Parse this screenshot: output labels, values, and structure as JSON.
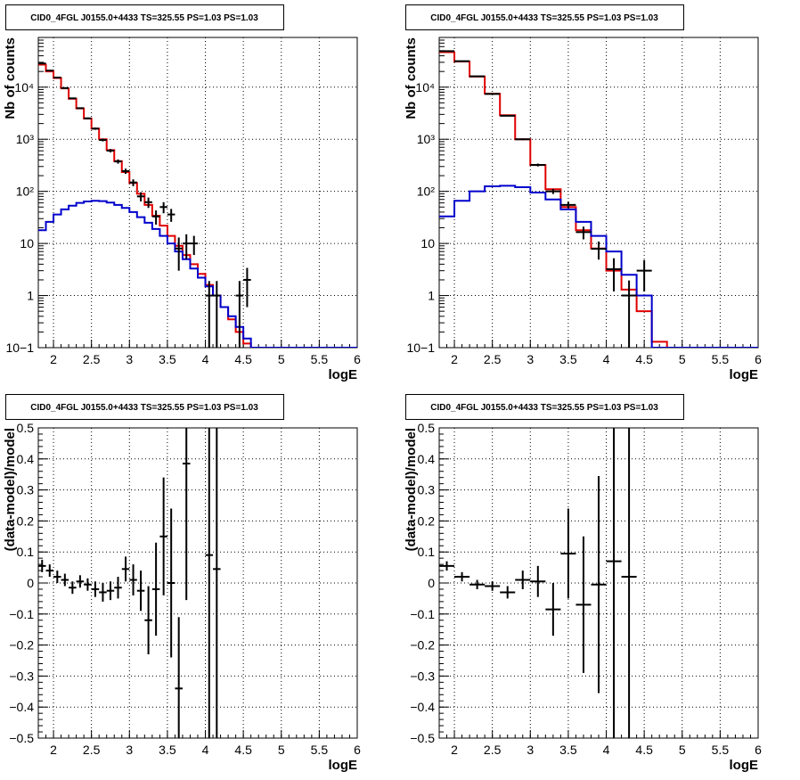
{
  "chart_data": [
    {
      "type": "line",
      "title": "CID0_4FGL J0155.0+4433 TS=325.55 PS=1.03 PS=1.03",
      "xlabel": "logE",
      "ylabel": "Nb of counts",
      "xlim": [
        1.8,
        6.0
      ],
      "ylim": [
        0.1,
        90000
      ],
      "ylog": true,
      "grid": true,
      "x_ticks": [
        "2",
        "2.5",
        "3",
        "3.5",
        "4",
        "4.5",
        "5",
        "5.5",
        "6"
      ],
      "y_ticks": [
        "10−1",
        "1",
        "10",
        "10²",
        "10³",
        "10⁴"
      ],
      "bin_edges": [
        1.8,
        1.9,
        2.0,
        2.1,
        2.2,
        2.3,
        2.4,
        2.5,
        2.6,
        2.7,
        2.8,
        2.9,
        3.0,
        3.1,
        3.2,
        3.3,
        3.4,
        3.5,
        3.6,
        3.7,
        3.8,
        3.9,
        4.0,
        4.1,
        4.2,
        4.3,
        4.4,
        4.5,
        4.6,
        4.7,
        4.8,
        4.9,
        5.0,
        5.1,
        5.2,
        5.3,
        5.4,
        5.5,
        5.6,
        5.7,
        5.8,
        5.9,
        6.0
      ],
      "series": [
        {
          "color": "#e00000",
          "values": [
            27000,
            20000,
            15000,
            9500,
            6000,
            3900,
            2500,
            1600,
            1000,
            620,
            380,
            235,
            145,
            90,
            55,
            34,
            22,
            14,
            9,
            6,
            4,
            2.6,
            1.6,
            1.0,
            0.6,
            0.35,
            0.2,
            0.12,
            0.1,
            0.1,
            0.1,
            0.1,
            0.1,
            0.1,
            0.1,
            0.1,
            0.1,
            0.1,
            0.1,
            0.1,
            0.1,
            0.1
          ]
        },
        {
          "color": "#0000cc",
          "values": [
            18,
            26,
            36,
            45,
            53,
            60,
            64,
            66,
            65,
            61,
            55,
            48,
            40,
            32,
            25,
            19,
            14,
            10,
            7,
            5,
            3.3,
            2.2,
            1.5,
            1.0,
            0.6,
            0.4,
            0.25,
            0.15,
            0.1,
            0.1,
            0.1,
            0.1,
            0.1,
            0.1,
            0.1,
            0.1,
            0.1,
            0.1,
            0.1,
            0.1,
            0.1,
            0.1
          ]
        }
      ],
      "points": [
        {
          "x": 1.85,
          "y": 28500,
          "err": 400
        },
        {
          "x": 1.95,
          "y": 20800,
          "err": 300
        },
        {
          "x": 2.05,
          "y": 15300,
          "err": 250
        },
        {
          "x": 2.15,
          "y": 9600,
          "err": 200
        },
        {
          "x": 2.25,
          "y": 6100,
          "err": 150
        },
        {
          "x": 2.35,
          "y": 3950,
          "err": 120
        },
        {
          "x": 2.45,
          "y": 2520,
          "err": 100
        },
        {
          "x": 2.55,
          "y": 1600,
          "err": 80
        },
        {
          "x": 2.65,
          "y": 970,
          "err": 60
        },
        {
          "x": 2.75,
          "y": 605,
          "err": 45
        },
        {
          "x": 2.85,
          "y": 375,
          "err": 35
        },
        {
          "x": 2.95,
          "y": 245,
          "err": 28
        },
        {
          "x": 3.05,
          "y": 148,
          "err": 22
        },
        {
          "x": 3.15,
          "y": 80,
          "err": 16
        },
        {
          "x": 3.25,
          "y": 62,
          "err": 14
        },
        {
          "x": 3.35,
          "y": 33,
          "err": 10
        },
        {
          "x": 3.45,
          "y": 50,
          "err": 12
        },
        {
          "x": 3.55,
          "y": 36,
          "err": 10
        },
        {
          "x": 3.65,
          "y": 8,
          "err": 5
        },
        {
          "x": 3.75,
          "y": 10,
          "err": 5
        },
        {
          "x": 3.85,
          "y": 10,
          "err": 4
        },
        {
          "x": 4.05,
          "y": 1,
          "err": 0.9
        },
        {
          "x": 4.15,
          "y": 1,
          "err": 0.9
        },
        {
          "x": 4.45,
          "y": 1,
          "err": 0.9
        },
        {
          "x": 4.55,
          "y": 2,
          "err": 1.4
        }
      ]
    },
    {
      "type": "line",
      "title": "CID0_4FGL J0155.0+4433 TS=325.55 PS=1.03 PS=1.03",
      "xlabel": "logE",
      "ylabel": "Nb of counts",
      "xlim": [
        1.8,
        6.0
      ],
      "ylim": [
        0.1,
        90000
      ],
      "ylog": true,
      "grid": true,
      "x_ticks": [
        "2",
        "2.5",
        "3",
        "3.5",
        "4",
        "4.5",
        "5",
        "5.5",
        "6"
      ],
      "y_ticks": [
        "10−1",
        "1",
        "10",
        "10²",
        "10³",
        "10⁴"
      ],
      "bin_edges": [
        1.8,
        2.0,
        2.2,
        2.4,
        2.6,
        2.8,
        3.0,
        3.2,
        3.4,
        3.6,
        3.8,
        4.0,
        4.2,
        4.4,
        4.6,
        4.8,
        5.0,
        5.2,
        5.4,
        5.6,
        5.8,
        6.0
      ],
      "series": [
        {
          "color": "#e00000",
          "values": [
            47000,
            31000,
            16000,
            7500,
            2900,
            1000,
            320,
            110,
            50,
            18,
            8,
            3,
            1.3,
            0.5,
            0.13,
            0.1,
            0.1,
            0.1,
            0.1,
            0.1,
            0.1
          ]
        },
        {
          "color": "#0000cc",
          "values": [
            33,
            66,
            100,
            125,
            128,
            120,
            95,
            70,
            45,
            26,
            14,
            7,
            2.5,
            1.0,
            0.1,
            0.1,
            0.1,
            0.1,
            0.1,
            0.1,
            0.1
          ]
        }
      ],
      "points": [
        {
          "x": 1.9,
          "y": 49000,
          "err": 300
        },
        {
          "x": 2.1,
          "y": 31500,
          "err": 250
        },
        {
          "x": 2.3,
          "y": 16100,
          "err": 150
        },
        {
          "x": 2.5,
          "y": 7420,
          "err": 100
        },
        {
          "x": 2.7,
          "y": 2820,
          "err": 60
        },
        {
          "x": 2.9,
          "y": 1000,
          "err": 35
        },
        {
          "x": 3.1,
          "y": 321,
          "err": 20
        },
        {
          "x": 3.3,
          "y": 100,
          "err": 11
        },
        {
          "x": 3.5,
          "y": 55,
          "err": 8
        },
        {
          "x": 3.7,
          "y": 16.5,
          "err": 4.5
        },
        {
          "x": 3.9,
          "y": 7.9,
          "err": 3
        },
        {
          "x": 4.1,
          "y": 3.2,
          "err": 2
        },
        {
          "x": 4.3,
          "y": 1.0,
          "err": 0.95
        },
        {
          "x": 4.5,
          "y": 3.0,
          "err": 1.8
        }
      ]
    },
    {
      "type": "scatter",
      "title": "CID0_4FGL J0155.0+4433 TS=325.55 PS=1.03 PS=1.03",
      "xlabel": "logE",
      "ylabel": "(data-model)/model",
      "xlim": [
        1.8,
        6.0
      ],
      "ylim": [
        -0.5,
        0.5
      ],
      "grid": true,
      "x_ticks": [
        "2",
        "2.5",
        "3",
        "3.5",
        "4",
        "4.5",
        "5",
        "5.5",
        "6"
      ],
      "y_ticks": [
        "−0.5",
        "−0.4",
        "−0.3",
        "−0.2",
        "−0.1",
        "0",
        "0.1",
        "0.2",
        "0.3",
        "0.4",
        "0.5"
      ],
      "bin_width": 0.1,
      "points": [
        {
          "x": 1.85,
          "y": 0.055,
          "err": 0.02
        },
        {
          "x": 1.95,
          "y": 0.04,
          "err": 0.02
        },
        {
          "x": 2.05,
          "y": 0.02,
          "err": 0.02
        },
        {
          "x": 2.15,
          "y": 0.01,
          "err": 0.02
        },
        {
          "x": 2.25,
          "y": -0.015,
          "err": 0.02
        },
        {
          "x": 2.35,
          "y": 0.005,
          "err": 0.02
        },
        {
          "x": 2.45,
          "y": -0.005,
          "err": 0.02
        },
        {
          "x": 2.55,
          "y": -0.02,
          "err": 0.025
        },
        {
          "x": 2.65,
          "y": -0.03,
          "err": 0.03
        },
        {
          "x": 2.75,
          "y": -0.025,
          "err": 0.03
        },
        {
          "x": 2.85,
          "y": -0.015,
          "err": 0.035
        },
        {
          "x": 2.95,
          "y": 0.045,
          "err": 0.04
        },
        {
          "x": 3.05,
          "y": 0.01,
          "err": 0.05
        },
        {
          "x": 3.15,
          "y": -0.025,
          "err": 0.065
        },
        {
          "x": 3.25,
          "y": -0.12,
          "err": 0.11
        },
        {
          "x": 3.35,
          "y": -0.02,
          "err": 0.15
        },
        {
          "x": 3.45,
          "y": 0.15,
          "err": 0.19
        },
        {
          "x": 3.55,
          "y": 0.0,
          "err": 0.24
        },
        {
          "x": 3.65,
          "y": -0.34,
          "err": 0.23
        },
        {
          "x": 3.75,
          "y": 0.385,
          "err": 0.44
        },
        {
          "x": 4.05,
          "y": 0.09,
          "err": 0.95
        },
        {
          "x": 4.15,
          "y": 0.045,
          "err": 0.95
        }
      ]
    },
    {
      "type": "scatter",
      "title": "CID0_4FGL J0155.0+4433 TS=325.55 PS=1.03 PS=1.03",
      "xlabel": "logE",
      "ylabel": "(data-model)/model",
      "xlim": [
        1.8,
        6.0
      ],
      "ylim": [
        -0.5,
        0.5
      ],
      "grid": true,
      "x_ticks": [
        "2",
        "2.5",
        "3",
        "3.5",
        "4",
        "4.5",
        "5",
        "5.5",
        "6"
      ],
      "y_ticks": [
        "−0.5",
        "−0.4",
        "−0.3",
        "−0.2",
        "−0.1",
        "0",
        "0.1",
        "0.2",
        "0.3",
        "0.4",
        "0.5"
      ],
      "bin_width": 0.2,
      "points": [
        {
          "x": 1.9,
          "y": 0.055,
          "err": 0.015
        },
        {
          "x": 2.1,
          "y": 0.02,
          "err": 0.015
        },
        {
          "x": 2.3,
          "y": -0.005,
          "err": 0.015
        },
        {
          "x": 2.5,
          "y": -0.01,
          "err": 0.015
        },
        {
          "x": 2.7,
          "y": -0.03,
          "err": 0.02
        },
        {
          "x": 2.9,
          "y": 0.01,
          "err": 0.03
        },
        {
          "x": 3.1,
          "y": 0.005,
          "err": 0.05
        },
        {
          "x": 3.3,
          "y": -0.085,
          "err": 0.085
        },
        {
          "x": 3.5,
          "y": 0.095,
          "err": 0.145
        },
        {
          "x": 3.7,
          "y": -0.07,
          "err": 0.22
        },
        {
          "x": 3.9,
          "y": -0.005,
          "err": 0.35
        },
        {
          "x": 4.1,
          "y": 0.07,
          "err": 0.9
        },
        {
          "x": 4.3,
          "y": 0.02,
          "err": 0.9
        }
      ]
    }
  ]
}
